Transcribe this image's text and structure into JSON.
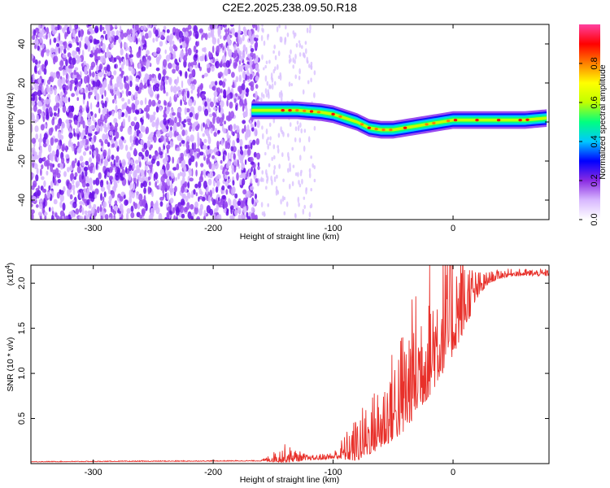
{
  "title": "C2E2.2025.238.09.50.R18",
  "chart_data": [
    {
      "type": "heatmap",
      "xlabel": "Height of straight line (km)",
      "ylabel": "Frequency (Hz)",
      "xlim": [
        -352,
        80
      ],
      "ylim": [
        -50,
        50
      ],
      "xticks": [
        -300,
        -200,
        -100,
        0
      ],
      "xtick_labels": [
        "-300",
        "-200",
        "-100",
        "0"
      ],
      "yticks": [
        -40,
        -20,
        0,
        20,
        40
      ],
      "ytick_labels": [
        "-40",
        "-20",
        "0",
        "20",
        "40"
      ],
      "colorbar": {
        "label": "Normalized spectral amplitude",
        "range": [
          0,
          1
        ],
        "ticks": [
          0.0,
          0.2,
          0.4,
          0.6,
          0.8
        ],
        "tick_labels": [
          "0.0",
          "0.2",
          "0.4",
          "0.6",
          "0.8"
        ],
        "colors": [
          "#ffffff",
          "#d8b8ff",
          "#8a2be2",
          "#0000ff",
          "#00c8ff",
          "#00ff80",
          "#c0ff00",
          "#ffff00",
          "#ff8000",
          "#ff0000",
          "#ff40a0"
        ]
      },
      "noise_region_x": [
        -352,
        -162
      ],
      "signal_track": {
        "x": [
          -168,
          -150,
          -130,
          -110,
          -100,
          -90,
          -80,
          -70,
          -60,
          -50,
          -40,
          -30,
          -20,
          -10,
          0,
          20,
          40,
          60,
          78
        ],
        "y": [
          6,
          6,
          6,
          5,
          4,
          2,
          0,
          -3,
          -4,
          -4,
          -3,
          -2,
          -1,
          0,
          1,
          1,
          1,
          1,
          2
        ]
      }
    },
    {
      "type": "line",
      "xlabel": "Height of straight line (km)",
      "ylabel": "SNR (10 * v/v)",
      "scale_label": "(x10",
      "scale_exp": "4",
      "scale_close": ")",
      "xlim": [
        -352,
        80
      ],
      "ylim": [
        0,
        2.2
      ],
      "xticks": [
        -300,
        -200,
        -100,
        0
      ],
      "xtick_labels": [
        "-300",
        "-200",
        "-100",
        "0"
      ],
      "yticks": [
        0.5,
        1.0,
        1.5,
        2.0
      ],
      "ytick_labels": [
        "0.5",
        "1.0",
        "1.5",
        "2.0"
      ],
      "line_color": "#e8302a",
      "envelope": {
        "x": [
          -352,
          -160,
          -140,
          -120,
          -100,
          -80,
          -70,
          -60,
          -50,
          -40,
          -30,
          -20,
          -10,
          0,
          10,
          20,
          30,
          40,
          50,
          60,
          70,
          80
        ],
        "y": [
          0.02,
          0.03,
          0.06,
          0.05,
          0.07,
          0.15,
          0.25,
          0.35,
          0.5,
          0.65,
          0.9,
          1.1,
          1.3,
          1.5,
          1.7,
          1.9,
          2.03,
          2.08,
          2.1,
          2.1,
          2.1,
          2.1
        ]
      },
      "noise_amplitude": {
        "x": [
          -352,
          -160,
          -140,
          -120,
          -100,
          -80,
          -60,
          -40,
          -20,
          0,
          10,
          20,
          30,
          50,
          80
        ],
        "y": [
          0.003,
          0.004,
          0.08,
          0.02,
          0.03,
          0.2,
          0.3,
          0.5,
          0.6,
          0.5,
          0.35,
          0.12,
          0.05,
          0.03,
          0.03
        ]
      }
    }
  ]
}
